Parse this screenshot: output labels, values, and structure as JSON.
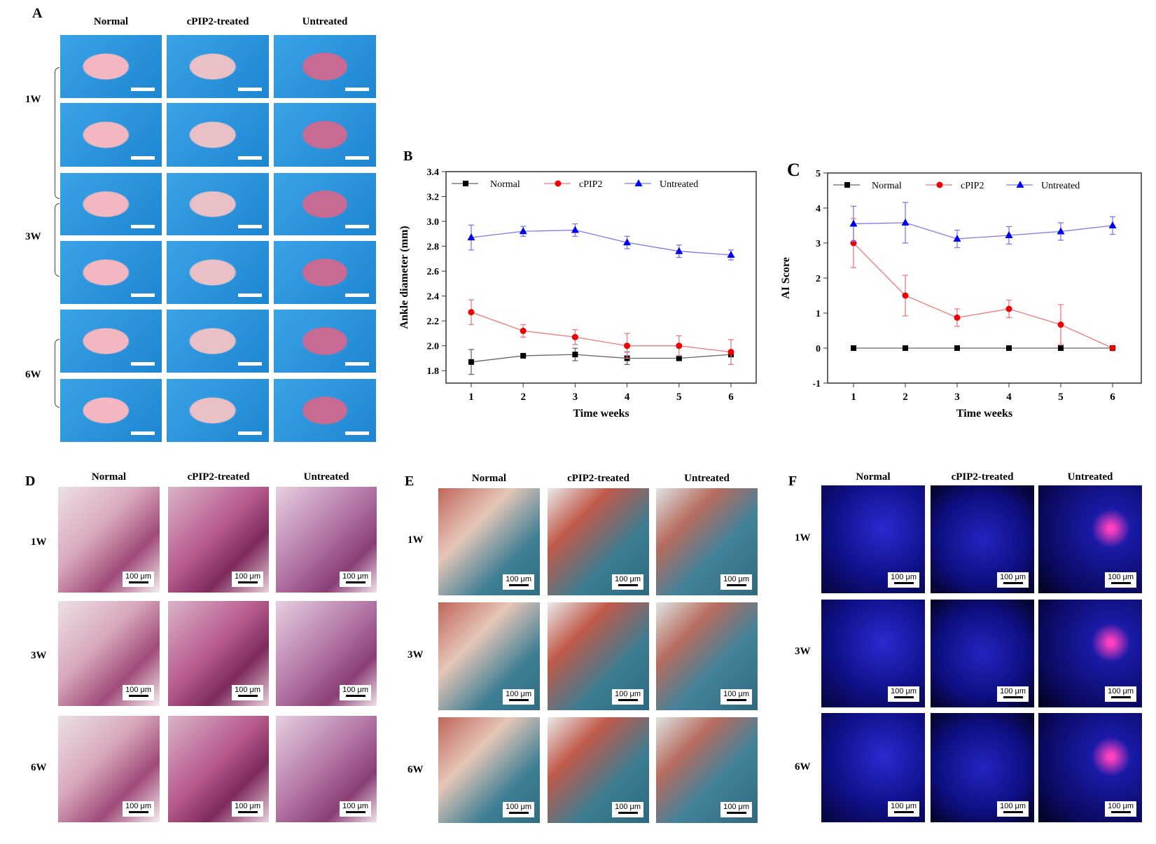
{
  "panels": {
    "A": {
      "label": "A",
      "columns": [
        "Normal",
        "cPIP2-treated",
        "Untreated"
      ],
      "rows": [
        "1W",
        "3W",
        "6W"
      ]
    },
    "B": {
      "label": "B"
    },
    "C": {
      "label": "C"
    },
    "D": {
      "label": "D",
      "columns": [
        "Normal",
        "cPIP2-treated",
        "Untreated"
      ],
      "rows": [
        "1W",
        "3W",
        "6W"
      ],
      "scale_bar": "100 μm"
    },
    "E": {
      "label": "E",
      "columns": [
        "Normal",
        "cPIP2-treated",
        "Untreated"
      ],
      "rows": [
        "1W",
        "3W",
        "6W"
      ],
      "scale_bar": "100 μm"
    },
    "F": {
      "label": "F",
      "columns": [
        "Normal",
        "cPIP2-treated",
        "Untreated"
      ],
      "rows": [
        "1W",
        "3W",
        "6W"
      ],
      "scale_bar": "100 μm"
    }
  },
  "chart_data": [
    {
      "panel": "B",
      "type": "line",
      "xlabel": "Time weeks",
      "ylabel": "Ankle diameter (mm)",
      "x": [
        1,
        2,
        3,
        4,
        5,
        6
      ],
      "xlim": [
        0.55,
        6.0
      ],
      "ylim": [
        1.7,
        3.4
      ],
      "yticks": [
        1.8,
        2.0,
        2.2,
        2.4,
        2.6,
        2.8,
        3.0,
        3.2,
        3.4
      ],
      "ytick_labels": [
        "1.8",
        "2.0",
        "2.2",
        "2.4",
        "2.6",
        "2.8",
        "3.0",
        "3.2",
        "3.4"
      ],
      "xtick_labels": [
        "1",
        "2",
        "3",
        "4",
        "5",
        "6"
      ],
      "legend": "top",
      "series": [
        {
          "name": "Normal",
          "marker": "square",
          "color": "#000000",
          "line_color": "#666666",
          "values": [
            1.87,
            1.92,
            1.93,
            1.9,
            1.9,
            1.93
          ],
          "errors": [
            0.1,
            0.01,
            0.05,
            0.05,
            0.02,
            0.01
          ]
        },
        {
          "name": "cPIP2",
          "marker": "circle",
          "color": "#ee0000",
          "line_color": "#f07878",
          "values": [
            2.27,
            2.12,
            2.07,
            2.0,
            2.0,
            1.95
          ],
          "errors": [
            0.1,
            0.05,
            0.06,
            0.1,
            0.08,
            0.1
          ]
        },
        {
          "name": "Untreated",
          "marker": "triangle",
          "color": "#0000ee",
          "line_color": "#7a7af0",
          "values": [
            2.87,
            2.92,
            2.93,
            2.83,
            2.76,
            2.73
          ],
          "errors": [
            0.1,
            0.04,
            0.05,
            0.05,
            0.05,
            0.04
          ]
        }
      ]
    },
    {
      "panel": "C",
      "type": "line",
      "xlabel": "Time weeks",
      "ylabel": "AI Score",
      "x": [
        1,
        2,
        3,
        4,
        5,
        6
      ],
      "xlim": [
        0.5,
        6.55
      ],
      "ylim": [
        -1,
        5
      ],
      "yticks": [
        -1,
        0,
        1,
        2,
        3,
        4,
        5
      ],
      "ytick_labels": [
        "-1",
        "0",
        "1",
        "2",
        "3",
        "4",
        "5"
      ],
      "xtick_labels": [
        "1",
        "2",
        "3",
        "4",
        "5",
        "6"
      ],
      "legend": "top",
      "series": [
        {
          "name": "Normal",
          "marker": "square",
          "color": "#000000",
          "line_color": "#666666",
          "values": [
            0,
            0,
            0,
            0,
            0,
            0
          ],
          "errors": [
            0,
            0,
            0,
            0,
            0,
            0
          ]
        },
        {
          "name": "cPIP2",
          "marker": "circle",
          "color": "#ee0000",
          "line_color": "#f07878",
          "values": [
            3.0,
            1.5,
            0.87,
            1.12,
            0.67,
            0
          ],
          "errors": [
            0.7,
            0.58,
            0.25,
            0.25,
            0.57,
            0
          ]
        },
        {
          "name": "Untreated",
          "marker": "triangle",
          "color": "#0000ee",
          "line_color": "#7a7af0",
          "values": [
            3.55,
            3.58,
            3.12,
            3.22,
            3.33,
            3.5
          ],
          "errors": [
            0.5,
            0.58,
            0.25,
            0.25,
            0.25,
            0.25
          ]
        }
      ]
    }
  ]
}
